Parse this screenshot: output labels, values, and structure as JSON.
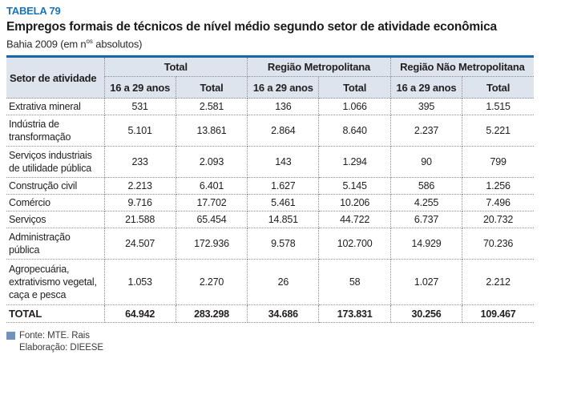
{
  "header": {
    "table_label": "TABELA 79",
    "title": "Empregos formais de técnicos de nível médio segundo setor de atividade econômica",
    "subtitle_prefix": "Bahia 2009 (em n",
    "subtitle_sup": "os",
    "subtitle_suffix": " absolutos)"
  },
  "chart_data": {
    "type": "table",
    "title": "Empregos formais de técnicos de nível médio segundo setor de atividade econômica",
    "subtitle": "Bahia 2009 (em nos absolutos)",
    "corner_header": "Setor de atividade",
    "groups": [
      {
        "label": "Total"
      },
      {
        "label": "Região Metropolitana"
      },
      {
        "label": "Região Não Metropolitana"
      }
    ],
    "sub_headers": [
      "16 a 29 anos",
      "Total",
      "16 a 29 anos",
      "Total",
      "16 a 29 anos",
      "Total"
    ],
    "rows": [
      {
        "sector": "Extrativa mineral",
        "values": [
          "531",
          "2.581",
          "136",
          "1.066",
          "395",
          "1.515"
        ]
      },
      {
        "sector": "Indústria de transformação",
        "values": [
          "5.101",
          "13.861",
          "2.864",
          "8.640",
          "2.237",
          "5.221"
        ]
      },
      {
        "sector": "Serviços industriais de utilidade pública",
        "values": [
          "233",
          "2.093",
          "143",
          "1.294",
          "90",
          "799"
        ]
      },
      {
        "sector": "Construção civil",
        "values": [
          "2.213",
          "6.401",
          "1.627",
          "5.145",
          "586",
          "1.256"
        ]
      },
      {
        "sector": "Comércio",
        "values": [
          "9.716",
          "17.702",
          "5.461",
          "10.206",
          "4.255",
          "7.496"
        ]
      },
      {
        "sector": "Serviços",
        "values": [
          "21.588",
          "65.454",
          "14.851",
          "44.722",
          "6.737",
          "20.732"
        ]
      },
      {
        "sector": "Administração pública",
        "values": [
          "24.507",
          "172.936",
          "9.578",
          "102.700",
          "14.929",
          "70.236"
        ]
      },
      {
        "sector": "Agropecuária, extrativismo vegetal, caça e pesca",
        "values": [
          "1.053",
          "2.270",
          "26",
          "58",
          "1.027",
          "2.212"
        ]
      }
    ],
    "total_row": {
      "sector": "TOTAL",
      "values": [
        "64.942",
        "283.298",
        "34.686",
        "173.831",
        "30.256",
        "109.467"
      ]
    }
  },
  "footer": {
    "source": "Fonte: MTE. Rais",
    "elaboration": "Elaboração: DIEESE"
  },
  "colors": {
    "accent_blue": "#1b74b8",
    "rule_blue": "#1567a8",
    "header_bg": "#dde4ee",
    "border_gray": "#8c8c8c",
    "footnote_square": "#7292ba"
  }
}
